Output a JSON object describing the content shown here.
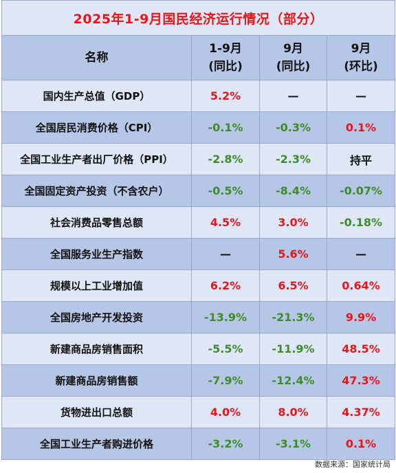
{
  "title": "2025年1-9月国民经济运行情况（部分）",
  "header": {
    "name": "名称",
    "col1": [
      "1-9月",
      "(同比)"
    ],
    "col2": [
      "9月",
      "(同比)"
    ],
    "col3": [
      "9月",
      "(环比)"
    ]
  },
  "rows": [
    {
      "name": "国内生产总值（GDP）",
      "v1": "5.2%",
      "v2": "—",
      "v3": "—",
      "c1": "#e8151b",
      "c2": "#111111",
      "c3": "#111111"
    },
    {
      "name": "全国居民消费价格（CPI）",
      "v1": "-0.1%",
      "v2": "-0.3%",
      "v3": "0.1%",
      "c1": "#3d8c2a",
      "c2": "#3d8c2a",
      "c3": "#e8151b"
    },
    {
      "name": "全国工业生产者出厂价格（PPI）",
      "v1": "-2.8%",
      "v2": "-2.3%",
      "v3": "持平",
      "c1": "#3d8c2a",
      "c2": "#3d8c2a",
      "c3": "#111111"
    },
    {
      "name": "全国固定资产投资（不含农户）",
      "v1": "-0.5%",
      "v2": "-8.4%",
      "v3": "-0.07%",
      "c1": "#3d8c2a",
      "c2": "#3d8c2a",
      "c3": "#3d8c2a"
    },
    {
      "name": "社会消费品零售总额",
      "v1": "4.5%",
      "v2": "3.0%",
      "v3": "-0.18%",
      "c1": "#e8151b",
      "c2": "#e8151b",
      "c3": "#3d8c2a"
    },
    {
      "name": "全国服务业生产指数",
      "v1": "—",
      "v2": "5.6%",
      "v3": "—",
      "c1": "#111111",
      "c2": "#e8151b",
      "c3": "#111111"
    },
    {
      "name": "规模以上工业增加值",
      "v1": "6.2%",
      "v2": "6.5%",
      "v3": "0.64%",
      "c1": "#e8151b",
      "c2": "#e8151b",
      "c3": "#e8151b"
    },
    {
      "name": "全国房地产开发投资",
      "v1": "-13.9%",
      "v2": "-21.3%",
      "v3": "9.9%",
      "c1": "#3d8c2a",
      "c2": "#3d8c2a",
      "c3": "#e8151b"
    },
    {
      "name": "新建商品房销售面积",
      "v1": "-5.5%",
      "v2": "-11.9%",
      "v3": "48.5%",
      "c1": "#3d8c2a",
      "c2": "#3d8c2a",
      "c3": "#e8151b"
    },
    {
      "name": "新建商品房销售额",
      "v1": "-7.9%",
      "v2": "-12.4%",
      "v3": "47.3%",
      "c1": "#3d8c2a",
      "c2": "#3d8c2a",
      "c3": "#e8151b"
    },
    {
      "name": "货物进出口总额",
      "v1": "4.0%",
      "v2": "8.0%",
      "v3": "4.37%",
      "c1": "#e8151b",
      "c2": "#e8151b",
      "c3": "#e8151b"
    },
    {
      "name": "全国工业生产者购进价格",
      "v1": "-3.2%",
      "v2": "-3.1%",
      "v3": "0.1%",
      "c1": "#3d8c2a",
      "c2": "#3d8c2a",
      "c3": "#e8151b"
    }
  ],
  "source": "数据来源：国家统计局"
}
